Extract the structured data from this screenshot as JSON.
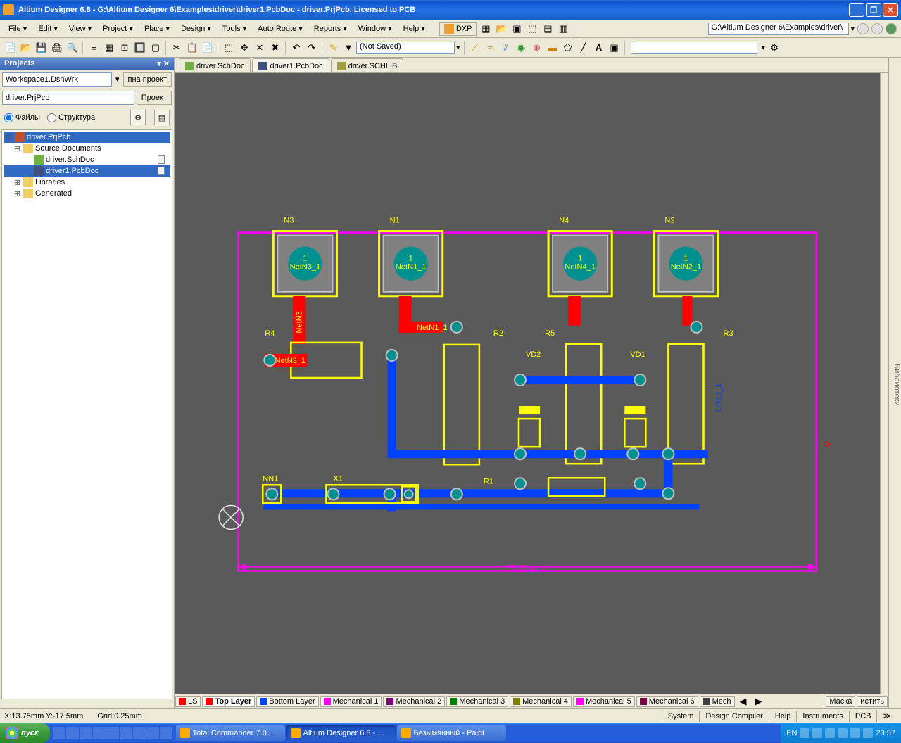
{
  "title": "Altium Designer 6.8 - G:\\Altium Designer 6\\Examples\\driver\\driver1.PcbDoc - driver.PrjPcb. Licensed to PCB",
  "menus": [
    "File",
    "Edit",
    "View",
    "Project",
    "Place",
    "Design",
    "Tools",
    "Auto Route",
    "Reports",
    "Window",
    "Help"
  ],
  "dxp_label": "DXP",
  "breadcrumb": "G:\\Altium Designer 6\\Examples\\driver\\",
  "notsaved": "(Not Saved)",
  "projects": {
    "title": "Projects",
    "workspace": "Workspace1.DsnWrk",
    "ws_btn": "пна проект",
    "project": "driver.PrjPcb",
    "proj_btn": "Проект",
    "radio_files": "Файлы",
    "radio_struct": "Структура",
    "tree": {
      "root": "driver.PrjPcb",
      "srcdocs": "Source Documents",
      "sch": "driver.SchDoc",
      "pcb": "driver1.PcbDoc",
      "libs": "Libraries",
      "gen": "Generated"
    }
  },
  "doctabs": {
    "sch": "driver.SchDoc",
    "pcb": "driver1.PcbDoc",
    "lib": "driver.SCHLIB"
  },
  "pcb": {
    "bg": "#5a5a5a",
    "outline": "#ff00ff",
    "silk": "#ffff00",
    "top": "#ff0000",
    "bottom": "#0040ff",
    "pad_fill": "#009090",
    "pad_stroke": "#c0c0c0",
    "origin": "#e0e0e0",
    "labels": {
      "N3": "N3",
      "N1": "N1",
      "N4": "N4",
      "N2": "N2",
      "R4": "R4",
      "R2": "R2",
      "R5": "R5",
      "R3": "R3",
      "VD2": "VD2",
      "VD1": "VD1",
      "R1": "R1",
      "NN1": "NN1",
      "X1": "X1",
      "DR12": "DR12_1",
      "Dr": "Dr",
      "dim": "75.00 (mm)",
      "netn3": "NetN3",
      "netn1": "NetN1_1",
      "padnet": "NetN3_1",
      "pin1": "1",
      "n3net": "NetN3_1",
      "n1net": "NetN1_1",
      "n4net": "NetN4_1",
      "n2net": "NetN2_1"
    }
  },
  "layers": [
    {
      "name": "LS",
      "color": "#ff0000",
      "active": false
    },
    {
      "name": "Top Layer",
      "color": "#ff0000",
      "active": true
    },
    {
      "name": "Bottom Layer",
      "color": "#0040ff",
      "active": false
    },
    {
      "name": "Mechanical 1",
      "color": "#ff00ff",
      "active": false
    },
    {
      "name": "Mechanical 2",
      "color": "#800080",
      "active": false
    },
    {
      "name": "Mechanical 3",
      "color": "#008000",
      "active": false
    },
    {
      "name": "Mechanical 4",
      "color": "#808000",
      "active": false
    },
    {
      "name": "Mechanical 5",
      "color": "#ff00ff",
      "active": false
    },
    {
      "name": "Mechanical 6",
      "color": "#800040",
      "active": false
    },
    {
      "name": "Mech",
      "color": "#404040",
      "active": false
    }
  ],
  "right_tab": "Библиотеки",
  "right_bottom": {
    "mask": "Маска",
    "clear": "истить"
  },
  "status": {
    "coords": "X:13.75mm Y:-17.5mm",
    "grid": "Grid:0.25mm",
    "panels": [
      "System",
      "Design Compiler",
      "Help",
      "Instruments",
      "PCB"
    ]
  },
  "taskbar": {
    "start": "пуск",
    "tasks": [
      {
        "label": "Total Commander 7.0...",
        "active": false
      },
      {
        "label": "Altium Designer 6.8 - ...",
        "active": true
      },
      {
        "label": "Безымянный - Paint",
        "active": false
      }
    ],
    "lang": "EN",
    "time": "23:57"
  }
}
